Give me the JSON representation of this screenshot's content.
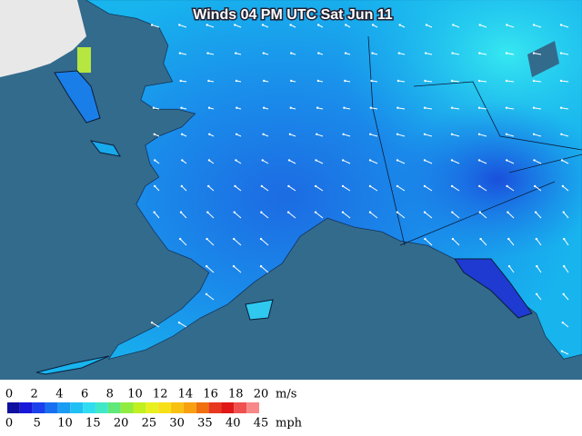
{
  "title": "Winds 04 PM UTC Sat Jun 11",
  "legend": {
    "ms_labels": [
      "0",
      "2",
      "4",
      "6",
      "8",
      "10",
      "12",
      "14",
      "16",
      "18",
      "20"
    ],
    "ms_unit": "m/s",
    "mph_labels": [
      "0",
      "5",
      "10",
      "15",
      "20",
      "25",
      "30",
      "35",
      "40",
      "45"
    ],
    "mph_unit": "mph"
  }
}
